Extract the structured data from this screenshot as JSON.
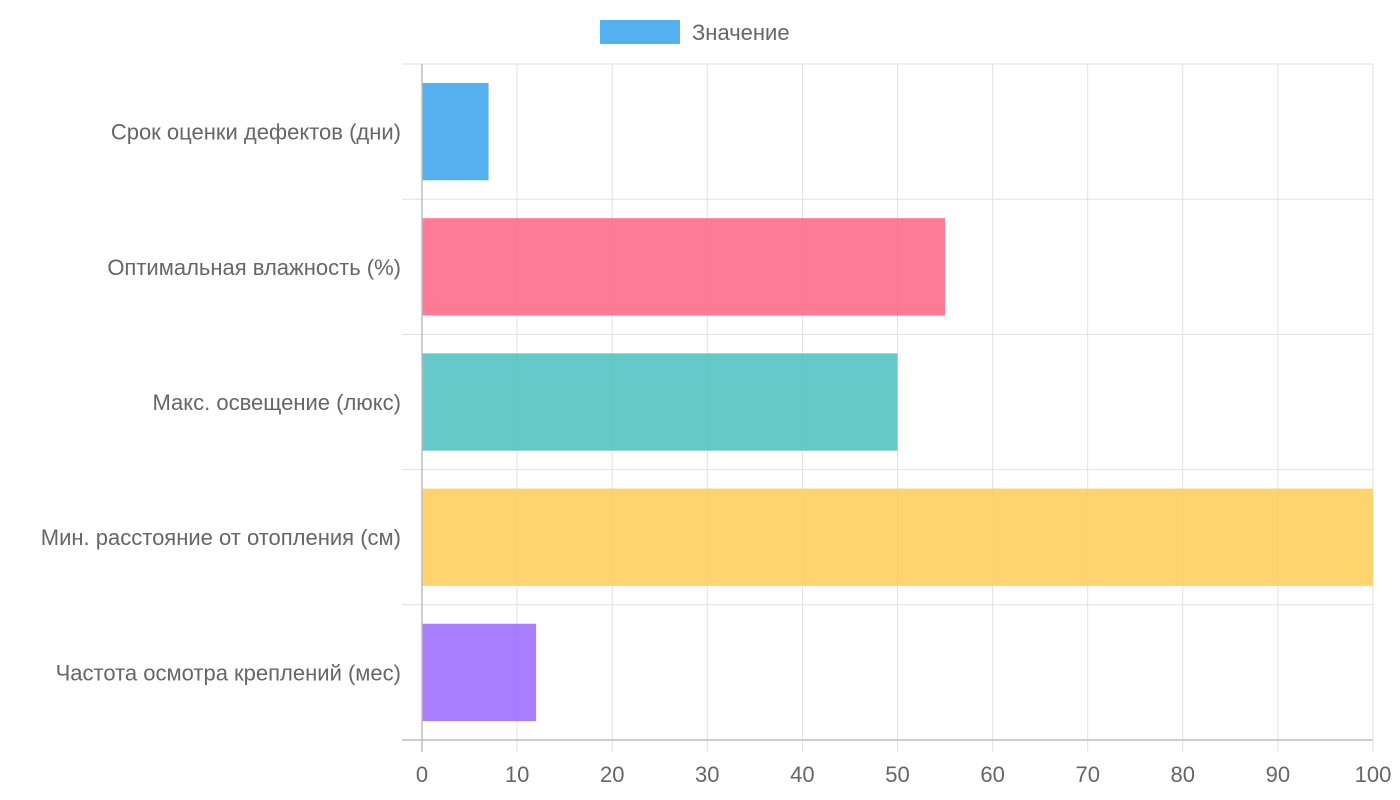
{
  "chart_data": {
    "type": "bar",
    "orientation": "horizontal",
    "categories": [
      "Срок оценки дефектов (дни)",
      "Оптимальная влажность (%)",
      "Макс. освещение (люкс)",
      "Мин. расстояние от отопления (см)",
      "Частота осмотра креплений (мес)"
    ],
    "series": [
      {
        "name": "Значение",
        "values": [
          7,
          55,
          50,
          100,
          12
        ]
      }
    ],
    "bar_colors": [
      "#36a2eb",
      "#ff6384",
      "#4bc0c0",
      "#ffcd56",
      "#9966ff"
    ],
    "legend": {
      "position": "top",
      "swatch_color": "#36a2eb"
    },
    "xlim": [
      0,
      100
    ],
    "x_ticks": [
      0,
      10,
      20,
      30,
      40,
      50,
      60,
      70,
      80,
      90,
      100
    ],
    "grid": true,
    "colors": {
      "grid": "#e1e1e1",
      "axis": "#bdbdbd",
      "text": "#666666"
    }
  }
}
